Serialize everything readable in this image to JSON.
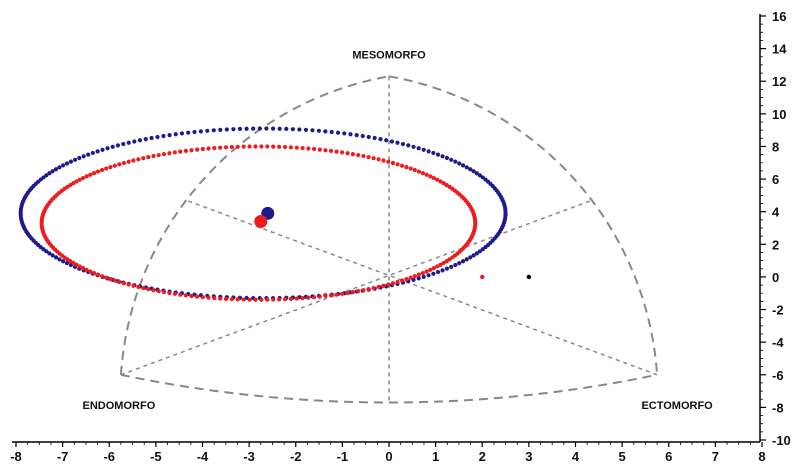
{
  "chart_data": {
    "type": "scatter",
    "title": "",
    "xlabel": "",
    "ylabel": "",
    "xlim": [
      -8,
      8
    ],
    "ylim": [
      -10,
      16
    ],
    "x_ticks": [
      -8,
      -7,
      -6,
      -5,
      -4,
      -3,
      -2,
      -1,
      0,
      1,
      2,
      3,
      4,
      5,
      6,
      7,
      8
    ],
    "y_ticks": [
      16,
      14,
      12,
      10,
      8,
      6,
      4,
      2,
      0,
      -2,
      -4,
      -6,
      -8,
      -10
    ],
    "grid": false,
    "y_axis_side": "right",
    "somatochart": {
      "labels": {
        "top": "MESOMORFO",
        "left": "ENDOMORFO",
        "right": "ECTOMORFO"
      },
      "vertices": {
        "top": [
          0,
          12.3
        ],
        "left": [
          -5.75,
          -6
        ],
        "right": [
          5.75,
          -6
        ]
      },
      "midpoints": {
        "top_left": [
          -4.35,
          4.7
        ],
        "top_right": [
          4.35,
          4.7
        ],
        "bottom": [
          0,
          -7.7
        ]
      },
      "center": [
        0,
        0
      ],
      "line_color": "#888888"
    },
    "series": [
      {
        "kind": "ellipse",
        "color": "#1c1c8c",
        "center": [
          -2.7,
          3.9
        ],
        "semi_axis_x": 5.2,
        "semi_axis_y": 5.2
      },
      {
        "kind": "ellipse",
        "color": "#ee1c1c",
        "center": [
          -2.8,
          3.3
        ],
        "semi_axis_x": 4.65,
        "semi_axis_y": 4.7
      },
      {
        "kind": "point",
        "color": "#1c1c8c",
        "x": -2.6,
        "y": 3.9,
        "size": "large"
      },
      {
        "kind": "point",
        "color": "#ee1c1c",
        "x": -2.75,
        "y": 3.4,
        "size": "large"
      },
      {
        "kind": "point",
        "color": "#ee1c1c",
        "x": 2,
        "y": 0,
        "size": "small"
      },
      {
        "kind": "point",
        "color": "#000000",
        "x": 3,
        "y": 0,
        "size": "small"
      }
    ]
  }
}
